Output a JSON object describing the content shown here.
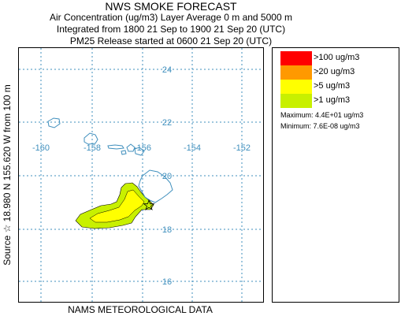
{
  "header": {
    "title": "NWS SMOKE FORECAST",
    "line2": "Air Concentration (ug/m3) Layer Average    0 m and  5000 m",
    "line3": "Integrated from 1800 21 Sep to 1900 21 Sep 20 (UTC)",
    "line4": "PM25 Release started at 0600 21 Sep 20 (UTC)"
  },
  "side_label": "Source ☆  18.980 N 155.620  W     from  100 m",
  "footer": "NAMS METEOROLOGICAL DATA",
  "map": {
    "lon_ticks": [
      "-160",
      "-158",
      "-156",
      "-154",
      "-152"
    ],
    "lat_ticks": [
      "24",
      "22",
      "20",
      "18",
      "16"
    ],
    "colors": {
      "grid": "#3f8fbd",
      "coast": "#3f8fbd",
      "plume_outer": "#c8f000",
      "plume_inner": "#ffff00"
    }
  },
  "legend": {
    "items": [
      {
        "label": ">100 ug/m3",
        "color": "#ff0000"
      },
      {
        "label": ">20 ug/m3",
        "color": "#ff9900"
      },
      {
        "label": ">5 ug/m3",
        "color": "#ffff00"
      },
      {
        "label": ">1 ug/m3",
        "color": "#c8f000"
      }
    ],
    "maximum": "Maximum: 4.4E+01 ug/m3",
    "minimum": "Minimum: 7.6E-08 ug/m3"
  }
}
